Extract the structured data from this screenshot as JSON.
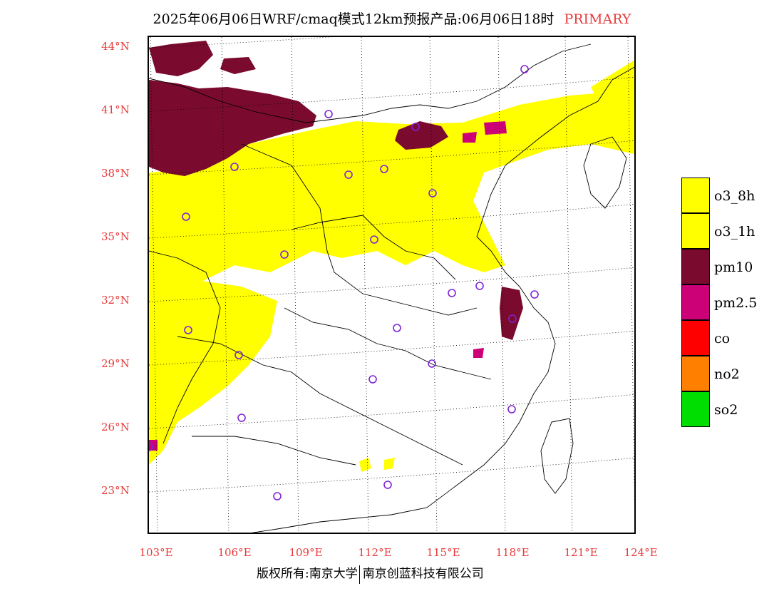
{
  "title": {
    "main": "2025年06月06日WRF/cmaq模式12km预报产品:06月06日18时",
    "tag": "PRIMARY",
    "tag_color": "#e83a3a"
  },
  "axes": {
    "label_color": "#e83a3a",
    "latitude_labels": [
      "44°N",
      "41°N",
      "38°N",
      "35°N",
      "32°N",
      "29°N",
      "26°N",
      "23°N"
    ],
    "longitude_labels": [
      "103°E",
      "106°E",
      "109°E",
      "112°E",
      "115°E",
      "118°E",
      "121°E",
      "124°E"
    ]
  },
  "legend": [
    {
      "label": "o3_8h",
      "color": "#ffff00"
    },
    {
      "label": "o3_1h",
      "color": "#ffff00"
    },
    {
      "label": "pm10",
      "color": "#7a0a2e"
    },
    {
      "label": "pm2.5",
      "color": "#cc0077"
    },
    {
      "label": "co",
      "color": "#ff0000"
    },
    {
      "label": "no2",
      "color": "#ff8000"
    },
    {
      "label": "so2",
      "color": "#00dd00"
    }
  ],
  "copyright": {
    "left": "版权所有:南京大学",
    "right": "南京创蓝科技有限公司"
  },
  "map_colors": {
    "o3": "#ffff00",
    "pm10": "#7a0a2e",
    "pm25": "#cc0077",
    "station_marker": "#7f22d6",
    "border": "#000000",
    "grid": "#000000"
  }
}
